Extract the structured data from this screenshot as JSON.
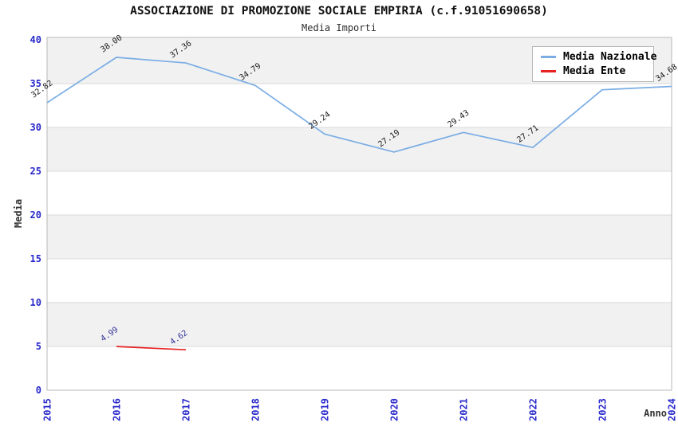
{
  "header": {
    "title": "ASSOCIAZIONE DI PROMOZIONE SOCIALE EMPIRIA (c.f.91051690658)",
    "subtitle": "Media Importi"
  },
  "chart_data": {
    "type": "line",
    "title": "ASSOCIAZIONE DI PROMOZIONE SOCIALE EMPIRIA (c.f.91051690658)",
    "subtitle": "Media Importi",
    "xlabel": "Anno",
    "ylabel": "Media",
    "x": [
      2015,
      2016,
      2017,
      2018,
      2019,
      2020,
      2021,
      2022,
      2023,
      2024
    ],
    "xlim": [
      2015,
      2024
    ],
    "ylim": [
      0,
      40
    ],
    "yticks": [
      0,
      5,
      10,
      15,
      20,
      25,
      30,
      35,
      40
    ],
    "grid": true,
    "band_colors": [
      "#ffffff",
      "#f1f1f1"
    ],
    "gridline_color": "#d9d9d9",
    "plot_border_color": "#b9b9b9",
    "tick_color": "#2929cc",
    "axis_title_color": "#333333",
    "series": [
      {
        "name": "Media Nazionale",
        "color": "#7aade4",
        "label_color": "#1a1a1a",
        "x": [
          2015,
          2016,
          2017,
          2018,
          2019,
          2020,
          2021,
          2022,
          2023,
          2024
        ],
        "values": [
          32.82,
          38.0,
          37.36,
          34.79,
          29.24,
          27.19,
          29.43,
          27.71,
          34.3,
          34.68
        ],
        "labels": [
          "32.82",
          "38.00",
          "37.36",
          "34.79",
          "29.24",
          "27.19",
          "29.43",
          "27.71",
          "",
          "34.68"
        ]
      },
      {
        "name": "Media Ente",
        "color": "#e62222",
        "label_color": "#333399",
        "x": [
          2016,
          2017
        ],
        "values": [
          4.99,
          4.62
        ],
        "labels": [
          "4.99",
          "4.62"
        ]
      }
    ],
    "legend": {
      "position": "top-right",
      "items": [
        {
          "label": "Media Nazionale",
          "color": "#7aade4"
        },
        {
          "label": "Media Ente",
          "color": "#e62222"
        }
      ]
    }
  }
}
